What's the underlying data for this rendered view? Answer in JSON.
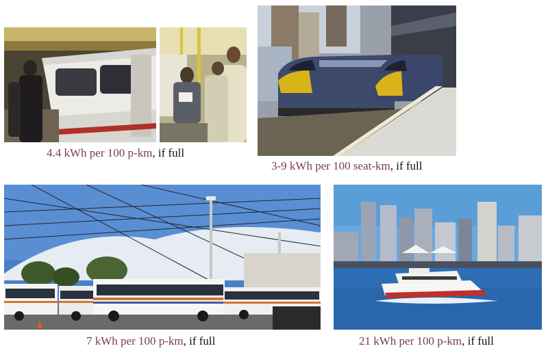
{
  "panels": [
    {
      "id": "tube",
      "caption_value": "4.4 kWh per 100 p-km",
      "caption_suffix": ", if full"
    },
    {
      "id": "train",
      "caption_value": "3-9 kWh per 100 seat-km",
      "caption_suffix": ", if full"
    },
    {
      "id": "trolleybus",
      "caption_value": "7 kWh per 100 p-km",
      "caption_suffix": ", if full"
    },
    {
      "id": "ferry",
      "caption_value": "21 kWh per 100 p-km",
      "caption_suffix": ", if full"
    }
  ],
  "colors": {
    "caption_highlight": "#7a3a5c",
    "caption_text": "#111111"
  }
}
